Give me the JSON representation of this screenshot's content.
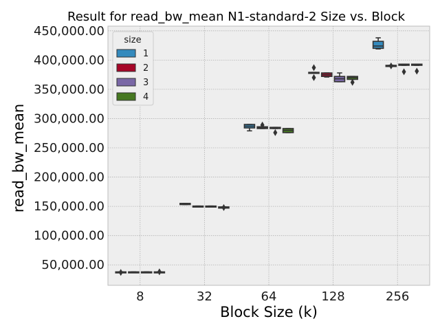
{
  "chart_data": {
    "type": "boxplot",
    "title": "Result for read_bw_mean N1-standard-2 Size vs. Block",
    "xlabel": "Block Size (k)",
    "ylabel": "read_bw_mean",
    "categories": [
      "8",
      "32",
      "64",
      "128",
      "256"
    ],
    "ylim": [
      15000,
      458000
    ],
    "yticks": [
      50000,
      100000,
      150000,
      200000,
      250000,
      300000,
      350000,
      400000,
      450000
    ],
    "ytick_labels": [
      "50,000.00",
      "100,000.00",
      "150,000.00",
      "200,000.00",
      "250,000.00",
      "300,000.00",
      "350,000.00",
      "400,000.00",
      "450,000.00"
    ],
    "grid": true,
    "legend": {
      "title": "size",
      "placement": "top-left"
    },
    "series": [
      {
        "name": "1",
        "color": "#348ABD",
        "boxes": [
          {
            "q1": 37000,
            "q3": 38000,
            "median": 37500,
            "whislo": 37000,
            "whishi": 38000,
            "fliers": [
              37000
            ]
          },
          {
            "q1": 153000,
            "q3": 155000,
            "median": 154000,
            "whislo": 153000,
            "whishi": 155000,
            "fliers": []
          },
          {
            "q1": 284000,
            "q3": 290000,
            "median": 287000,
            "whislo": 279000,
            "whishi": 290000,
            "fliers": []
          },
          {
            "q1": 378000,
            "q3": 379000,
            "median": 378500,
            "whislo": 378000,
            "whishi": 379000,
            "fliers": [
              370000,
              387000
            ]
          },
          {
            "q1": 420000,
            "q3": 432000,
            "median": 424000,
            "whislo": 419000,
            "whishi": 438000,
            "fliers": []
          }
        ]
      },
      {
        "name": "2",
        "color": "#A60628",
        "boxes": [
          {
            "q1": 37000,
            "q3": 38000,
            "median": 37500,
            "whislo": 37000,
            "whishi": 38000,
            "fliers": []
          },
          {
            "q1": 149500,
            "q3": 150500,
            "median": 150000,
            "whislo": 149500,
            "whishi": 150500,
            "fliers": []
          },
          {
            "q1": 283000,
            "q3": 286000,
            "median": 284500,
            "whislo": 283000,
            "whishi": 286000,
            "fliers": [
              289000
            ]
          },
          {
            "q1": 372000,
            "q3": 378000,
            "median": 375000,
            "whislo": 371000,
            "whishi": 378000,
            "fliers": []
          },
          {
            "q1": 389000,
            "q3": 391000,
            "median": 390000,
            "whislo": 389000,
            "whishi": 391000,
            "fliers": [
              390000
            ]
          }
        ]
      },
      {
        "name": "3",
        "color": "#7A68A6",
        "boxes": [
          {
            "q1": 37000,
            "q3": 38000,
            "median": 37500,
            "whislo": 37000,
            "whishi": 38000,
            "fliers": []
          },
          {
            "q1": 149500,
            "q3": 150500,
            "median": 150000,
            "whislo": 149500,
            "whishi": 150500,
            "fliers": []
          },
          {
            "q1": 283000,
            "q3": 285000,
            "median": 284000,
            "whislo": 283000,
            "whishi": 285000,
            "fliers": [
              276000
            ]
          },
          {
            "q1": 363000,
            "q3": 372000,
            "median": 368000,
            "whislo": 363000,
            "whishi": 378000,
            "fliers": []
          },
          {
            "q1": 391000,
            "q3": 393000,
            "median": 392000,
            "whislo": 391000,
            "whishi": 393000,
            "fliers": [
              380000
            ]
          }
        ]
      },
      {
        "name": "4",
        "color": "#467821",
        "boxes": [
          {
            "q1": 37000,
            "q3": 38000,
            "median": 37500,
            "whislo": 37000,
            "whishi": 38000,
            "fliers": [
              38000
            ]
          },
          {
            "q1": 147000,
            "q3": 149000,
            "median": 148000,
            "whislo": 147000,
            "whishi": 149000,
            "fliers": [
              148000
            ]
          },
          {
            "q1": 276000,
            "q3": 283000,
            "median": 280000,
            "whislo": 276000,
            "whishi": 283000,
            "fliers": []
          },
          {
            "q1": 367000,
            "q3": 372000,
            "median": 370000,
            "whislo": 367000,
            "whishi": 372000,
            "fliers": [
              362000
            ]
          },
          {
            "q1": 391000,
            "q3": 393000,
            "median": 392000,
            "whislo": 391000,
            "whishi": 393000,
            "fliers": [
              381000
            ]
          }
        ]
      }
    ]
  }
}
